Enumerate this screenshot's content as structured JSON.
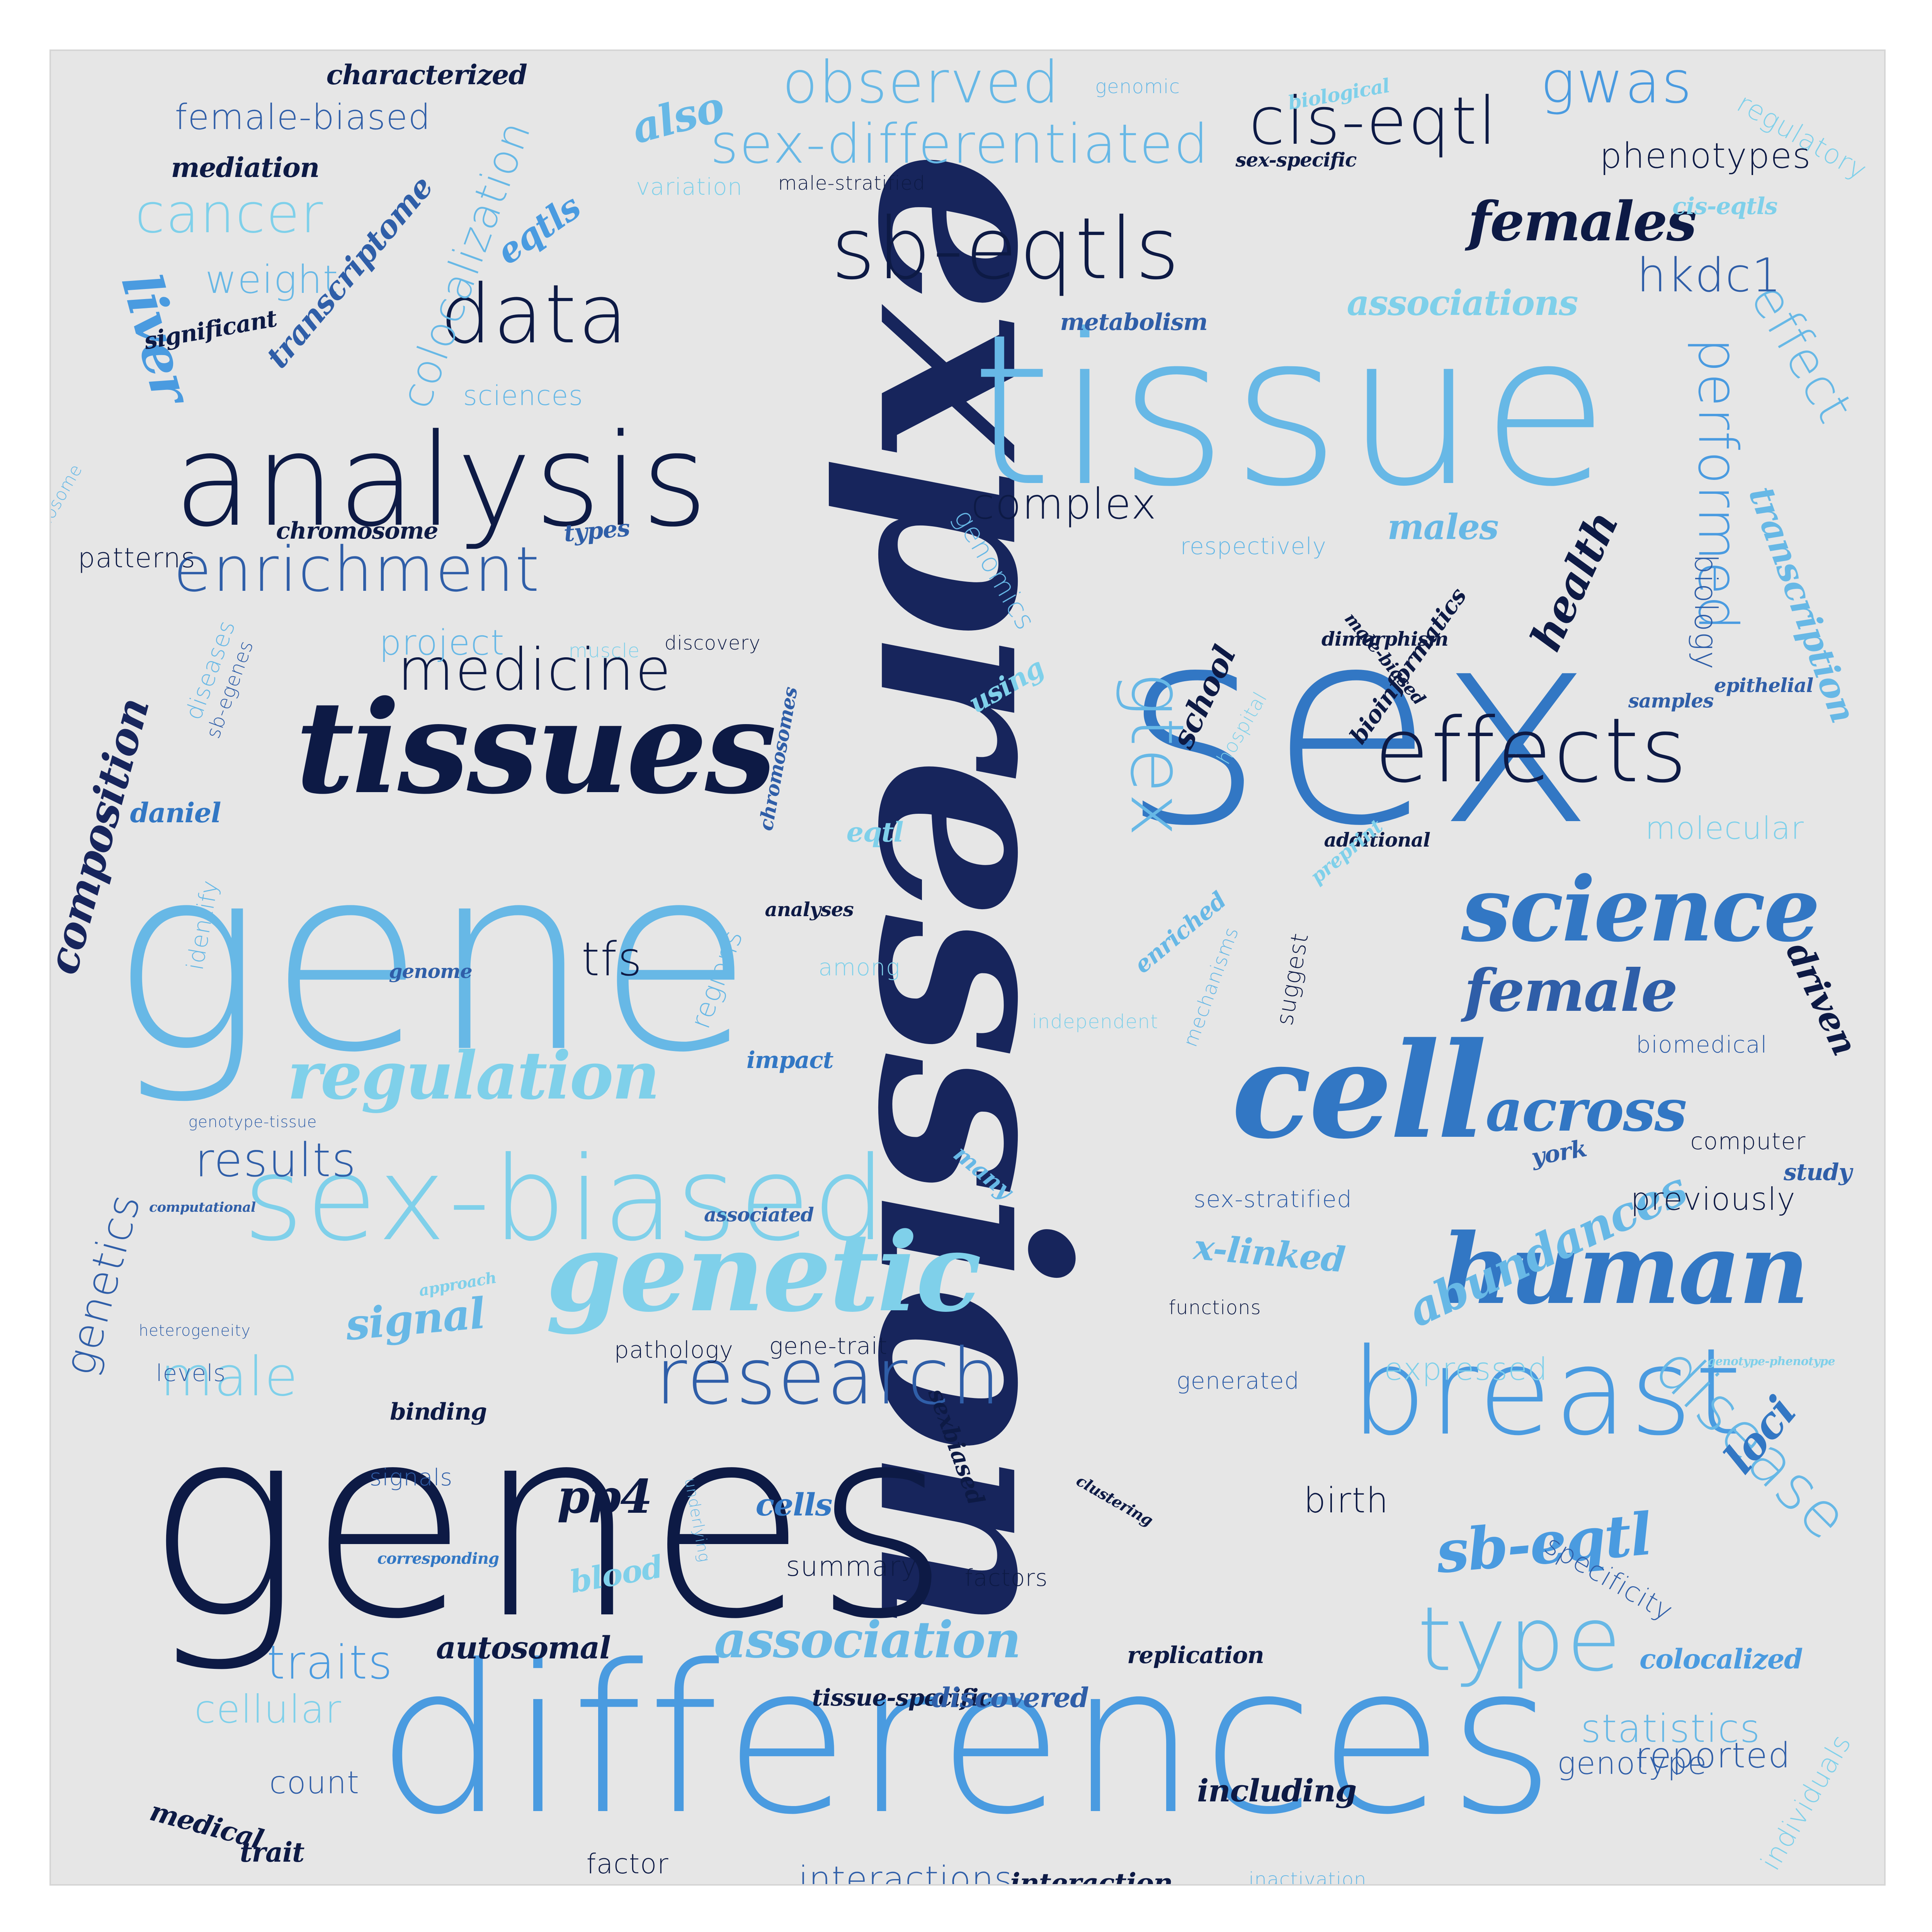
{
  "palette": {
    "navy": "#0d1a45",
    "dark": "#17255c",
    "mid": "#3277c4",
    "steel": "#2f5ea8",
    "blue": "#4a9be0",
    "sky": "#67b8e6",
    "light": "#7fd0ea",
    "background": "#e6e6e6"
  },
  "words": [
    {
      "text": "expression",
      "style": "script",
      "color": "#17255c"
    },
    {
      "text": "genes",
      "style": "sans",
      "color": "#0d1a45"
    },
    {
      "text": "gene",
      "style": "sans",
      "color": "#67b8e6"
    },
    {
      "text": "differences",
      "style": "sans",
      "color": "#4a9be0"
    },
    {
      "text": "tissue",
      "style": "sans",
      "color": "#67b8e6"
    },
    {
      "text": "sex",
      "style": "sans",
      "color": "#3277c4"
    },
    {
      "text": "tissues",
      "style": "script",
      "color": "#0d1a45"
    },
    {
      "text": "analysis",
      "style": "sans",
      "color": "#0d1a45"
    },
    {
      "text": "sex-biased",
      "style": "sans",
      "color": "#7fd0ea"
    },
    {
      "text": "cell",
      "style": "script",
      "color": "#3277c4"
    },
    {
      "text": "breast",
      "style": "sans",
      "color": "#4a9be0"
    },
    {
      "text": "genetic",
      "style": "script",
      "color": "#7fd0ea"
    },
    {
      "text": "human",
      "style": "script",
      "color": "#3277c4"
    },
    {
      "text": "science",
      "style": "script",
      "color": "#3277c4"
    },
    {
      "text": "sb-eqtls",
      "style": "sans",
      "color": "#0d1a45"
    },
    {
      "text": "effects",
      "style": "sans",
      "color": "#0d1a45"
    },
    {
      "text": "research",
      "style": "sans",
      "color": "#2f5ea8"
    },
    {
      "text": "type",
      "style": "sans",
      "color": "#67b8e6"
    },
    {
      "text": "gtex",
      "style": "sans",
      "color": "#67b8e6"
    },
    {
      "text": "data",
      "style": "sans",
      "color": "#0d1a45"
    },
    {
      "text": "enrichment",
      "style": "sans",
      "color": "#2f5ea8"
    },
    {
      "text": "medicine",
      "style": "sans",
      "color": "#0d1a45"
    },
    {
      "text": "regulation",
      "style": "script",
      "color": "#7fd0ea"
    },
    {
      "text": "across",
      "style": "script",
      "color": "#3277c4"
    },
    {
      "text": "female",
      "style": "script",
      "color": "#2f5ea8"
    },
    {
      "text": "cis-eqtl",
      "style": "sans",
      "color": "#0d1a45"
    },
    {
      "text": "gwas",
      "style": "sans",
      "color": "#4a9be0"
    },
    {
      "text": "observed",
      "style": "sans",
      "color": "#67b8e6"
    },
    {
      "text": "sex-differentiated",
      "style": "sans",
      "color": "#67b8e6"
    },
    {
      "text": "cancer",
      "style": "sans",
      "color": "#7fd0ea"
    },
    {
      "text": "females",
      "style": "script",
      "color": "#0d1a45"
    },
    {
      "text": "performed",
      "style": "sans",
      "color": "#4a9be0"
    },
    {
      "text": "effect",
      "style": "sans",
      "color": "#67b8e6"
    },
    {
      "text": "hkdc1",
      "style": "sans",
      "color": "#2f5ea8"
    },
    {
      "text": "colocalization",
      "style": "sans",
      "color": "#67b8e6"
    },
    {
      "text": "liver",
      "style": "script",
      "color": "#4a9be0"
    },
    {
      "text": "complex",
      "style": "sans",
      "color": "#0d1a45"
    },
    {
      "text": "disease",
      "style": "sans",
      "color": "#67b8e6"
    },
    {
      "text": "sb-eqtl",
      "style": "script",
      "color": "#4a9be0"
    },
    {
      "text": "male",
      "style": "sans",
      "color": "#7fd0ea"
    },
    {
      "text": "results",
      "style": "sans",
      "color": "#2f5ea8"
    },
    {
      "text": "genetics",
      "style": "sans",
      "color": "#2f5ea8"
    },
    {
      "text": "signal",
      "style": "script",
      "color": "#67b8e6"
    },
    {
      "text": "abundances",
      "style": "script",
      "color": "#67b8e6"
    },
    {
      "text": "association",
      "style": "script",
      "color": "#67b8e6"
    },
    {
      "text": "composition",
      "style": "script",
      "color": "#17255c"
    },
    {
      "text": "health",
      "style": "script",
      "color": "#0d1a45"
    },
    {
      "text": "loci",
      "style": "script",
      "color": "#3277c4"
    },
    {
      "text": "traits",
      "style": "sans",
      "color": "#4a9be0"
    },
    {
      "text": "statistics",
      "style": "sans",
      "color": "#67b8e6"
    },
    {
      "text": "tfs",
      "style": "sans",
      "color": "#0d1a45"
    },
    {
      "text": "also",
      "style": "script",
      "color": "#67b8e6"
    },
    {
      "text": "female-biased",
      "style": "sans",
      "color": "#2f5ea8"
    },
    {
      "text": "phenotypes",
      "style": "sans",
      "color": "#0d1a45"
    },
    {
      "text": "weight",
      "style": "sans",
      "color": "#67b8e6"
    },
    {
      "text": "transcriptome",
      "style": "script",
      "color": "#2f5ea8"
    },
    {
      "text": "eqtls",
      "style": "script",
      "color": "#4a9be0"
    },
    {
      "text": "associations",
      "style": "script",
      "color": "#7fd0ea"
    },
    {
      "text": "transcription",
      "style": "script",
      "color": "#67b8e6"
    },
    {
      "text": "project",
      "style": "sans",
      "color": "#67b8e6"
    },
    {
      "text": "previously",
      "style": "sans",
      "color": "#0d1a45"
    },
    {
      "text": "x-linked",
      "style": "script",
      "color": "#67b8e6"
    },
    {
      "text": "birth",
      "style": "sans",
      "color": "#0d1a45"
    },
    {
      "text": "reported",
      "style": "sans",
      "color": "#2f5ea8"
    },
    {
      "text": "count",
      "style": "sans",
      "color": "#2f5ea8"
    },
    {
      "text": "driven",
      "style": "script",
      "color": "#0d1a45"
    },
    {
      "text": "males",
      "style": "script",
      "color": "#67b8e6"
    },
    {
      "text": "school",
      "style": "script",
      "color": "#0d1a45"
    },
    {
      "text": "molecular",
      "style": "sans",
      "color": "#7fd0ea"
    },
    {
      "text": "biology",
      "style": "sans",
      "color": "#2f5ea8"
    },
    {
      "text": "sciences",
      "style": "sans",
      "color": "#67b8e6"
    },
    {
      "text": "patterns",
      "style": "sans",
      "color": "#0d1a45"
    },
    {
      "text": "chromosome",
      "style": "script",
      "color": "#0d1a45"
    },
    {
      "text": "types",
      "style": "script",
      "color": "#2f5ea8"
    },
    {
      "text": "genomics",
      "style": "sans",
      "color": "#67b8e6"
    },
    {
      "text": "characterized",
      "style": "script",
      "color": "#0d1a45"
    },
    {
      "text": "mediation",
      "style": "script",
      "color": "#0d1a45"
    },
    {
      "text": "significant",
      "style": "script",
      "color": "#0d1a45"
    },
    {
      "text": "metabolism",
      "style": "script",
      "color": "#2f5ea8"
    },
    {
      "text": "sex-specific",
      "style": "script",
      "color": "#0d1a45"
    },
    {
      "text": "cis-eqtls",
      "style": "script",
      "color": "#7fd0ea"
    },
    {
      "text": "biological",
      "style": "script",
      "color": "#7fd0ea"
    },
    {
      "text": "genomic",
      "style": "sans",
      "color": "#67b8e6"
    },
    {
      "text": "regulatory",
      "style": "sans",
      "color": "#7fd0ea"
    },
    {
      "text": "variation",
      "style": "sans",
      "color": "#7fd0ea"
    },
    {
      "text": "male-stratified",
      "style": "sans",
      "color": "#0d1a45"
    },
    {
      "text": "x-chromosome",
      "style": "sans",
      "color": "#67b8e6"
    },
    {
      "text": "respectively",
      "style": "sans",
      "color": "#67b8e6"
    },
    {
      "text": "diseases",
      "style": "sans",
      "color": "#67b8e6"
    },
    {
      "text": "sb-egenes",
      "style": "sans",
      "color": "#2f5ea8"
    },
    {
      "text": "muscle",
      "style": "sans",
      "color": "#7fd0ea"
    },
    {
      "text": "discovery",
      "style": "sans",
      "color": "#0d1a45"
    },
    {
      "text": "chromosomes",
      "style": "script",
      "color": "#2f5ea8"
    },
    {
      "text": "using",
      "style": "script",
      "color": "#7fd0ea"
    },
    {
      "text": "daniel",
      "style": "script",
      "color": "#3277c4"
    },
    {
      "text": "eqtl",
      "style": "script",
      "color": "#7fd0ea"
    },
    {
      "text": "additional",
      "style": "script",
      "color": "#0d1a45"
    },
    {
      "text": "dimorphism",
      "style": "script",
      "color": "#0d1a45"
    },
    {
      "text": "bioinformatics",
      "style": "script",
      "color": "#0d1a45"
    },
    {
      "text": "male-biased",
      "style": "script",
      "color": "#0d1a45"
    },
    {
      "text": "hospital",
      "style": "sans",
      "color": "#7fd0ea"
    },
    {
      "text": "samples",
      "style": "script",
      "color": "#2f5ea8"
    },
    {
      "text": "epithelial",
      "style": "script",
      "color": "#2f5ea8"
    },
    {
      "text": "preprint",
      "style": "script",
      "color": "#7fd0ea"
    },
    {
      "text": "enriched",
      "style": "script",
      "color": "#67b8e6"
    },
    {
      "text": "identify",
      "style": "sans",
      "color": "#67b8e6"
    },
    {
      "text": "analyses",
      "style": "script",
      "color": "#0d1a45"
    },
    {
      "text": "genome",
      "style": "script",
      "color": "#2f5ea8"
    },
    {
      "text": "among",
      "style": "sans",
      "color": "#7fd0ea"
    },
    {
      "text": "regions",
      "style": "sans",
      "color": "#67b8e6"
    },
    {
      "text": "mechanisms",
      "style": "sans",
      "color": "#67b8e6"
    },
    {
      "text": "independent",
      "style": "sans",
      "color": "#7fd0ea"
    },
    {
      "text": "suggest",
      "style": "sans",
      "color": "#0d1a45"
    },
    {
      "text": "impact",
      "style": "script",
      "color": "#3277c4"
    },
    {
      "text": "biomedical",
      "style": "sans",
      "color": "#2f5ea8"
    },
    {
      "text": "genotype-tissue",
      "style": "sans",
      "color": "#2f5ea8"
    },
    {
      "text": "computer",
      "style": "sans",
      "color": "#0d1a45"
    },
    {
      "text": "many",
      "style": "script",
      "color": "#67b8e6"
    },
    {
      "text": "york",
      "style": "script",
      "color": "#2f5ea8"
    },
    {
      "text": "study",
      "style": "script",
      "color": "#2f5ea8"
    },
    {
      "text": "computational",
      "style": "script",
      "color": "#2f5ea8"
    },
    {
      "text": "associated",
      "style": "script",
      "color": "#2f5ea8"
    },
    {
      "text": "sex-stratified",
      "style": "sans",
      "color": "#2f5ea8"
    },
    {
      "text": "approach",
      "style": "script",
      "color": "#7fd0ea"
    },
    {
      "text": "functions",
      "style": "sans",
      "color": "#0d1a45"
    },
    {
      "text": "heterogeneity",
      "style": "sans",
      "color": "#2f5ea8"
    },
    {
      "text": "pathology",
      "style": "sans",
      "color": "#0d1a45"
    },
    {
      "text": "gene-trait",
      "style": "sans",
      "color": "#0d1a45"
    },
    {
      "text": "levels",
      "style": "sans",
      "color": "#2f5ea8"
    },
    {
      "text": "generated",
      "style": "sans",
      "color": "#2f5ea8"
    },
    {
      "text": "expressed",
      "style": "sans",
      "color": "#7fd0ea"
    },
    {
      "text": "genotype-phenotype",
      "style": "script",
      "color": "#7fd0ea"
    },
    {
      "text": "binding",
      "style": "script",
      "color": "#0d1a45"
    },
    {
      "text": "sexbiased",
      "style": "script",
      "color": "#0d1a45"
    },
    {
      "text": "signals",
      "style": "sans",
      "color": "#2f5ea8"
    },
    {
      "text": "pp4",
      "style": "script",
      "color": "#0d1a45"
    },
    {
      "text": "cells",
      "style": "script",
      "color": "#3277c4"
    },
    {
      "text": "clustering",
      "style": "script",
      "color": "#0d1a45"
    },
    {
      "text": "underlying",
      "style": "sans",
      "color": "#67b8e6"
    },
    {
      "text": "corresponding",
      "style": "script",
      "color": "#3277c4"
    },
    {
      "text": "blood",
      "style": "script",
      "color": "#7fd0ea"
    },
    {
      "text": "summary",
      "style": "sans",
      "color": "#0d1a45"
    },
    {
      "text": "factors",
      "style": "sans",
      "color": "#0d1a45"
    },
    {
      "text": "specificity",
      "style": "sans",
      "color": "#2f5ea8"
    },
    {
      "text": "autosomal",
      "style": "script",
      "color": "#0d1a45"
    },
    {
      "text": "replication",
      "style": "script",
      "color": "#0d1a45"
    },
    {
      "text": "colocalized",
      "style": "script",
      "color": "#4a9be0"
    },
    {
      "text": "cellular",
      "style": "sans",
      "color": "#7fd0ea"
    },
    {
      "text": "tissue-specific",
      "style": "script",
      "color": "#0d1a45"
    },
    {
      "text": "discovered",
      "style": "script",
      "color": "#2f5ea8"
    },
    {
      "text": "trait",
      "style": "script",
      "color": "#0d1a45"
    },
    {
      "text": "including",
      "style": "script",
      "color": "#0d1a45"
    },
    {
      "text": "genotype",
      "style": "sans",
      "color": "#2f5ea8"
    },
    {
      "text": "individuals",
      "style": "sans",
      "color": "#7fd0ea"
    },
    {
      "text": "medical",
      "style": "script",
      "color": "#0d1a45"
    },
    {
      "text": "factor",
      "style": "sans",
      "color": "#0d1a45"
    },
    {
      "text": "interactions",
      "style": "sans",
      "color": "#2f5ea8"
    },
    {
      "text": "interaction",
      "style": "script",
      "color": "#0d1a45"
    },
    {
      "text": "inactivation",
      "style": "sans",
      "color": "#67b8e6"
    }
  ]
}
